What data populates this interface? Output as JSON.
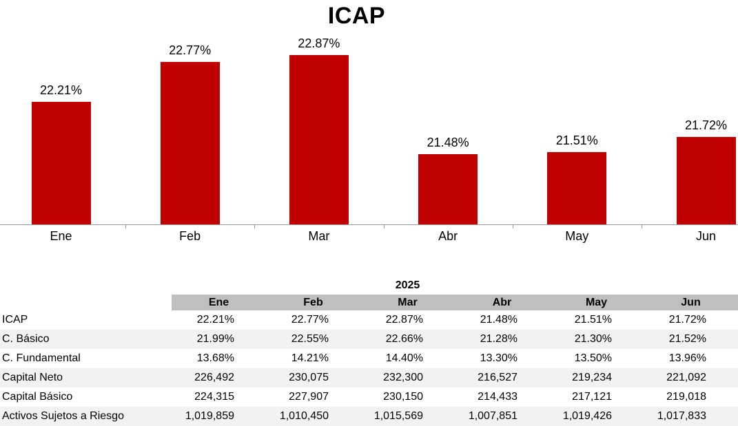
{
  "chart_data": {
    "type": "bar",
    "title": "ICAP",
    "categories": [
      "Ene",
      "Feb",
      "Mar",
      "Abr",
      "May",
      "Jun"
    ],
    "values": [
      22.21,
      22.77,
      22.87,
      21.48,
      21.51,
      21.72
    ],
    "value_labels": [
      "22.21%",
      "22.77%",
      "22.87%",
      "21.48%",
      "21.51%",
      "21.72%"
    ],
    "xlabel": "",
    "ylabel": "",
    "ylim": [
      20.5,
      23.0
    ],
    "grid": false,
    "legend": false,
    "bar_color": "#C00000",
    "axis_color": "#999999",
    "label_color": "#000000"
  },
  "table": {
    "year_header": "2025",
    "columns": [
      "Ene",
      "Feb",
      "Mar",
      "Abr",
      "May",
      "Jun"
    ],
    "rows": [
      {
        "label": "ICAP",
        "values": [
          "22.21%",
          "22.77%",
          "22.87%",
          "21.48%",
          "21.51%",
          "21.72%"
        ]
      },
      {
        "label": "C. Básico",
        "values": [
          "21.99%",
          "22.55%",
          "22.66%",
          "21.28%",
          "21.30%",
          "21.52%"
        ]
      },
      {
        "label": "C. Fundamental",
        "values": [
          "13.68%",
          "14.21%",
          "14.40%",
          "13.30%",
          "13.50%",
          "13.96%"
        ]
      },
      {
        "label": "Capital Neto",
        "values": [
          "226,492",
          "230,075",
          "232,300",
          "216,527",
          "219,234",
          "221,092"
        ]
      },
      {
        "label": "Capital Básico",
        "values": [
          "224,315",
          "227,907",
          "230,150",
          "214,433",
          "217,121",
          "219,018"
        ]
      },
      {
        "label": "Activos Sujetos a Riesgo",
        "values": [
          "1,019,859",
          "1,010,450",
          "1,015,569",
          "1,007,851",
          "1,019,426",
          "1,017,833"
        ]
      }
    ],
    "header_bg": "#BFBFBF",
    "stripe_bg": "#F2F2F2"
  }
}
